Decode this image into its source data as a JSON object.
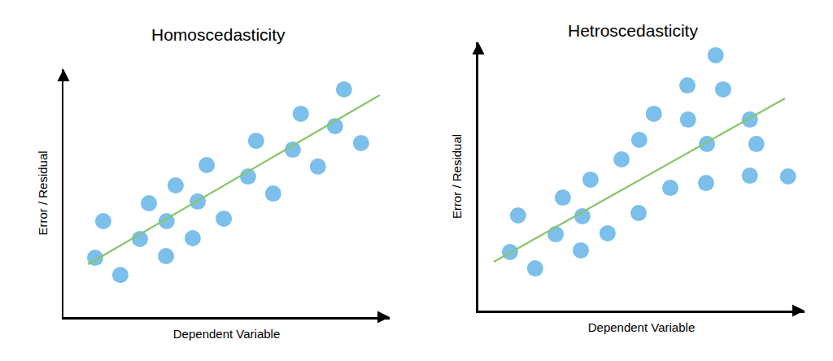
{
  "chart_data": [
    {
      "type": "scatter",
      "title": "Homoscedasticity",
      "x_label": "Dependent Variable",
      "y_label": "Error / Residual",
      "xlim": [
        0,
        10.5
      ],
      "ylim": [
        0,
        10
      ],
      "xticks": [],
      "yticks": [],
      "tick_labels": false,
      "grid": false,
      "series": [
        {
          "type": "scatter",
          "marker": "circle",
          "color": "#7bbfea",
          "x": [
            1.02,
            1.28,
            1.83,
            2.46,
            2.75,
            3.32,
            3.3,
            3.61,
            4.16,
            4.32,
            4.61,
            5.16,
            5.94,
            6.2,
            6.75,
            7.38,
            7.64,
            8.19,
            8.74,
            9.03,
            9.58
          ],
          "values": [
            2.39,
            3.87,
            1.7,
            3.15,
            4.59,
            3.87,
            2.46,
            5.31,
            3.18,
            4.66,
            6.13,
            3.97,
            5.67,
            7.11,
            4.98,
            6.75,
            8.2,
            6.07,
            7.7,
            9.18,
            7.02
          ]
        },
        {
          "type": "line",
          "line_style": "solid",
          "color": "#86c66b",
          "x": [
            0.79,
            10.18
          ],
          "values": [
            2.13,
            8.95
          ]
        }
      ]
    },
    {
      "type": "scatter",
      "title": "Hetroscedasticity",
      "x_label": "Dependent Variable",
      "y_label": "Error / Residual",
      "xlim": [
        0,
        10.5
      ],
      "ylim": [
        0,
        11
      ],
      "xticks": [],
      "yticks": [],
      "tick_labels": false,
      "grid": false,
      "series": [
        {
          "type": "scatter",
          "marker": "circle",
          "color": "#7bbfea",
          "x": [
            1.02,
            1.28,
            1.83,
            2.49,
            2.72,
            3.3,
            3.35,
            3.61,
            4.16,
            4.61,
            5.16,
            5.18,
            5.65,
            6.18,
            6.73,
            6.75,
            7.33,
            7.36,
            7.64,
            7.88,
            8.74,
            8.74,
            8.95,
            9.97
          ],
          "values": [
            2.4,
            3.9,
            1.73,
            3.13,
            4.63,
            2.47,
            3.87,
            5.37,
            3.17,
            6.2,
            4.0,
            7.0,
            8.07,
            5.03,
            9.23,
            7.83,
            5.23,
            6.83,
            10.47,
            9.07,
            5.53,
            7.83,
            6.83,
            5.5
          ]
        },
        {
          "type": "line",
          "line_style": "solid",
          "color": "#86c66b",
          "x": [
            0.5,
            9.87
          ],
          "values": [
            2.0,
            8.7
          ]
        }
      ]
    }
  ]
}
